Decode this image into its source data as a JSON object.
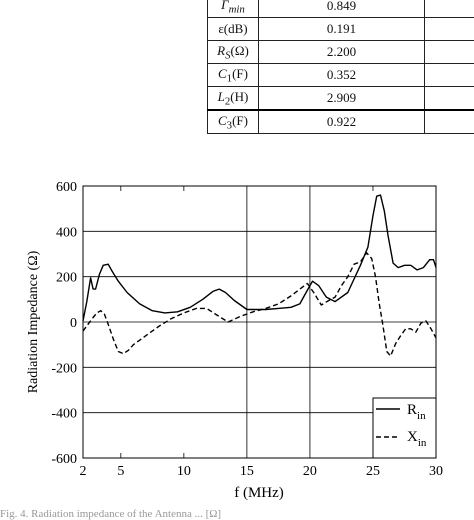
{
  "table": {
    "rows": [
      {
        "label": "Γmin",
        "value": "0.849"
      },
      {
        "label": "ε(dB)",
        "value": "0.191"
      },
      {
        "label": "RS(Ω)",
        "value": "2.200"
      },
      {
        "label": "C1(F)",
        "value": "0.352"
      },
      {
        "label": "L2(H)",
        "value": "2.909"
      },
      {
        "label": "C3(F)",
        "value": "0.922"
      }
    ]
  },
  "caption": "Fig. 4. Radiation impedance of the Antenna ... [Ω]",
  "chart_data": {
    "type": "line",
    "title": "",
    "xlabel": "f (MHz)",
    "ylabel": "Radiation Impedance (Ω)",
    "xlim": [
      2,
      30
    ],
    "ylim": [
      -600,
      600
    ],
    "xticks": [
      2,
      5,
      10,
      15,
      20,
      25,
      30
    ],
    "yticks": [
      -600,
      -400,
      -200,
      0,
      200,
      400,
      600
    ],
    "grid": true,
    "legend_position": "bottom-right",
    "series": [
      {
        "name": "R_in",
        "style": "solid",
        "color": "#000000",
        "x": [
          2,
          2.3,
          2.6,
          2.8,
          3.0,
          3.3,
          3.6,
          4.0,
          4.3,
          4.8,
          5.5,
          6.5,
          7.5,
          8.5,
          9.5,
          10.5,
          11.5,
          12.3,
          12.8,
          13.3,
          14.0,
          15.0,
          16.5,
          17.5,
          18.5,
          19.2,
          19.7,
          20.2,
          20.7,
          21.3,
          22.0,
          23.0,
          24.0,
          24.6,
          25.0,
          25.3,
          25.6,
          25.9,
          26.2,
          26.6,
          27.0,
          27.5,
          28.0,
          28.5,
          29.0,
          29.5,
          29.8,
          30.0
        ],
        "y": [
          5,
          90,
          195,
          145,
          145,
          210,
          250,
          255,
          225,
          180,
          130,
          80,
          50,
          40,
          45,
          65,
          100,
          135,
          145,
          130,
          95,
          55,
          55,
          60,
          65,
          80,
          130,
          180,
          160,
          110,
          90,
          130,
          250,
          330,
          470,
          555,
          560,
          490,
          380,
          260,
          240,
          250,
          250,
          230,
          240,
          275,
          275,
          240
        ]
      },
      {
        "name": "X_in",
        "style": "dashed",
        "color": "#000000",
        "x": [
          2,
          2.4,
          2.8,
          3.1,
          3.4,
          3.7,
          4.0,
          4.4,
          4.8,
          5.2,
          5.6,
          6.0,
          7.0,
          8.0,
          9.0,
          10.0,
          11.0,
          11.8,
          12.5,
          13.5,
          14.5,
          15.5,
          16.5,
          17.5,
          18.5,
          19.2,
          19.8,
          20.3,
          20.9,
          21.5,
          22.0,
          22.5,
          23.0,
          23.5,
          24.0,
          24.5,
          24.9,
          25.2,
          25.5,
          25.8,
          26.1,
          26.4,
          26.8,
          27.2,
          27.6,
          28.0,
          28.4,
          28.8,
          29.2,
          29.6,
          30.0
        ],
        "y": [
          -40,
          -10,
          20,
          40,
          50,
          35,
          -10,
          -75,
          -130,
          -140,
          -125,
          -100,
          -60,
          -20,
          15,
          40,
          60,
          60,
          35,
          0,
          25,
          45,
          60,
          80,
          115,
          145,
          170,
          130,
          75,
          95,
          110,
          160,
          200,
          255,
          265,
          305,
          280,
          200,
          80,
          -20,
          -130,
          -150,
          -95,
          -60,
          -30,
          -30,
          -45,
          -5,
          5,
          -30,
          -70
        ]
      }
    ],
    "legend_labels": {
      "R": "R",
      "R_sub": "in",
      "X": "X",
      "X_sub": "in"
    }
  }
}
